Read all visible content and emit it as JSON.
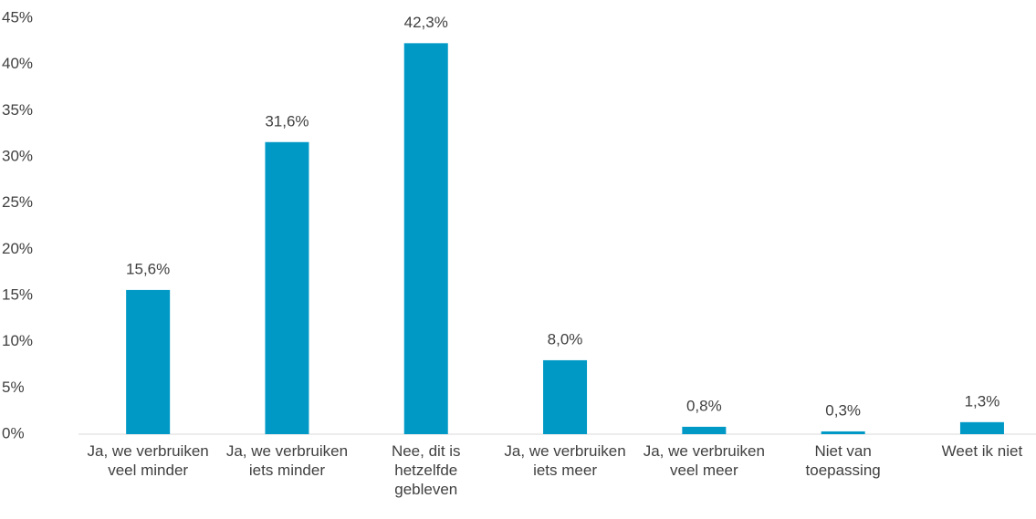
{
  "chart_data": {
    "type": "bar",
    "categories": [
      "Ja, we verbruiken veel minder",
      "Ja, we verbruiken iets minder",
      "Nee, dit is hetzelfde gebleven",
      "Ja, we verbruiken iets meer",
      "Ja, we verbruiken veel meer",
      "Niet van toepassing",
      "Weet ik niet"
    ],
    "values": [
      15.6,
      31.6,
      42.3,
      8.0,
      0.8,
      0.3,
      1.3
    ],
    "value_labels": [
      "15,6%",
      "31,6%",
      "42,3%",
      "8,0%",
      "0,8%",
      "0,3%",
      "1,3%"
    ],
    "color": "#0099c6",
    "ylim": [
      0,
      45
    ],
    "yticks": [
      {
        "value": 0,
        "label": "0%"
      },
      {
        "value": 5,
        "label": "5%"
      },
      {
        "value": 10,
        "label": "10%"
      },
      {
        "value": 15,
        "label": "15%"
      },
      {
        "value": 20,
        "label": "20%"
      },
      {
        "value": 25,
        "label": "25%"
      },
      {
        "value": 30,
        "label": "30%"
      },
      {
        "value": 35,
        "label": "35%"
      },
      {
        "value": 40,
        "label": "40%"
      },
      {
        "value": 45,
        "label": "45%"
      }
    ],
    "grid": false
  }
}
